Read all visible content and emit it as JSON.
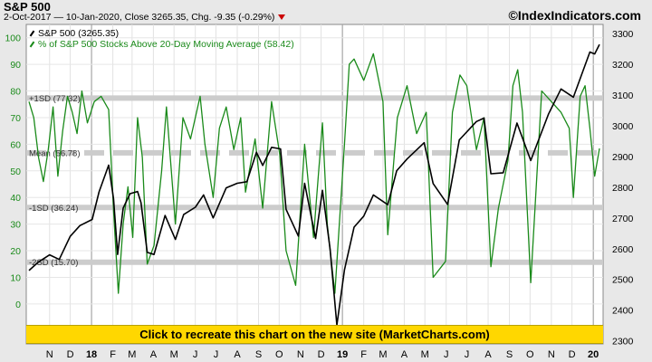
{
  "header": {
    "title": "S&P 500",
    "subtitle": "2-Oct-2017  —  10-Jan-2020, Close 3265.35, Chg. -9.35 (-0.29%)",
    "source": "©IndexIndicators.com",
    "change_color": "#cc0000"
  },
  "legend": {
    "sp500": "S&P 500 (3265.35)",
    "pct_above": "% of S&P 500 Stocks Above 20-Day Moving Average (58.42)"
  },
  "banner": {
    "label": "Click to recreate this chart on the new site (MarketCharts.com)"
  },
  "colors": {
    "sp500": "#000000",
    "pct": "#1a8a1a",
    "band": "#cccccc",
    "banner": "#ffd700"
  },
  "chart_data": {
    "type": "line",
    "x_range": [
      "2017-10-02",
      "2020-01-10"
    ],
    "x_ticks": [
      {
        "date": "2017-11-01",
        "label": "N"
      },
      {
        "date": "2017-12-01",
        "label": "D"
      },
      {
        "date": "2018-01-01",
        "label": "18"
      },
      {
        "date": "2018-02-01",
        "label": "F"
      },
      {
        "date": "2018-03-01",
        "label": "M"
      },
      {
        "date": "2018-04-01",
        "label": "A"
      },
      {
        "date": "2018-05-01",
        "label": "M"
      },
      {
        "date": "2018-06-01",
        "label": "J"
      },
      {
        "date": "2018-07-01",
        "label": "J"
      },
      {
        "date": "2018-08-01",
        "label": "A"
      },
      {
        "date": "2018-09-01",
        "label": "S"
      },
      {
        "date": "2018-10-01",
        "label": "O"
      },
      {
        "date": "2018-11-01",
        "label": "N"
      },
      {
        "date": "2018-12-01",
        "label": "D"
      },
      {
        "date": "2019-01-01",
        "label": "19"
      },
      {
        "date": "2019-02-01",
        "label": "F"
      },
      {
        "date": "2019-03-01",
        "label": "M"
      },
      {
        "date": "2019-04-01",
        "label": "A"
      },
      {
        "date": "2019-05-01",
        "label": "M"
      },
      {
        "date": "2019-06-01",
        "label": "J"
      },
      {
        "date": "2019-07-01",
        "label": "J"
      },
      {
        "date": "2019-08-01",
        "label": "A"
      },
      {
        "date": "2019-09-01",
        "label": "S"
      },
      {
        "date": "2019-10-01",
        "label": "O"
      },
      {
        "date": "2019-11-01",
        "label": "N"
      },
      {
        "date": "2019-12-01",
        "label": "D"
      },
      {
        "date": "2020-01-01",
        "label": "20"
      }
    ],
    "year_marks": [
      "2018-01-01",
      "2019-01-01",
      "2020-01-01"
    ],
    "left_axis": {
      "min": -15,
      "max": 105,
      "ticks": [
        0,
        10,
        20,
        30,
        40,
        50,
        60,
        70,
        80,
        90,
        100
      ]
    },
    "right_axis": {
      "min": 2290,
      "max": 3330,
      "ticks": [
        2300,
        2400,
        2500,
        2600,
        2700,
        2800,
        2900,
        3000,
        3100,
        3200,
        3300
      ]
    },
    "bands": [
      {
        "label": "+1SD (77.32)",
        "value": 77.32
      },
      {
        "label": "Mean (56.78)",
        "value": 56.78,
        "dashed": true
      },
      {
        "label": "-1SD (36.24)",
        "value": 36.24
      },
      {
        "label": "-2SD (15.70)",
        "value": 15.7
      }
    ],
    "series": [
      {
        "name": "S&P 500 (3265.35)",
        "axis": "right",
        "points": [
          [
            "2017-10-02",
            2529
          ],
          [
            "2017-10-16",
            2557
          ],
          [
            "2017-11-01",
            2580
          ],
          [
            "2017-11-15",
            2565
          ],
          [
            "2017-12-01",
            2640
          ],
          [
            "2017-12-15",
            2675
          ],
          [
            "2018-01-02",
            2695
          ],
          [
            "2018-01-12",
            2785
          ],
          [
            "2018-01-26",
            2872
          ],
          [
            "2018-02-02",
            2762
          ],
          [
            "2018-02-08",
            2581
          ],
          [
            "2018-02-16",
            2732
          ],
          [
            "2018-02-26",
            2779
          ],
          [
            "2018-03-09",
            2786
          ],
          [
            "2018-03-14",
            2750
          ],
          [
            "2018-03-23",
            2588
          ],
          [
            "2018-04-02",
            2581
          ],
          [
            "2018-04-18",
            2708
          ],
          [
            "2018-05-03",
            2630
          ],
          [
            "2018-05-15",
            2711
          ],
          [
            "2018-06-01",
            2735
          ],
          [
            "2018-06-13",
            2775
          ],
          [
            "2018-06-27",
            2700
          ],
          [
            "2018-07-16",
            2798
          ],
          [
            "2018-08-01",
            2813
          ],
          [
            "2018-08-15",
            2818
          ],
          [
            "2018-08-29",
            2914
          ],
          [
            "2018-09-07",
            2871
          ],
          [
            "2018-09-20",
            2930
          ],
          [
            "2018-10-03",
            2925
          ],
          [
            "2018-10-11",
            2728
          ],
          [
            "2018-10-29",
            2641
          ],
          [
            "2018-11-07",
            2813
          ],
          [
            "2018-11-23",
            2633
          ],
          [
            "2018-12-03",
            2790
          ],
          [
            "2018-12-14",
            2599
          ],
          [
            "2018-12-24",
            2351
          ],
          [
            "2019-01-04",
            2531
          ],
          [
            "2019-01-18",
            2670
          ],
          [
            "2019-02-01",
            2706
          ],
          [
            "2019-02-15",
            2775
          ],
          [
            "2019-03-08",
            2743
          ],
          [
            "2019-03-21",
            2854
          ],
          [
            "2019-04-05",
            2892
          ],
          [
            "2019-04-30",
            2945
          ],
          [
            "2019-05-13",
            2812
          ],
          [
            "2019-06-03",
            2744
          ],
          [
            "2019-06-20",
            2954
          ],
          [
            "2019-07-15",
            3014
          ],
          [
            "2019-07-26",
            3025
          ],
          [
            "2019-08-05",
            2844
          ],
          [
            "2019-08-23",
            2847
          ],
          [
            "2019-09-12",
            3009
          ],
          [
            "2019-10-02",
            2887
          ],
          [
            "2019-10-28",
            3039
          ],
          [
            "2019-11-15",
            3120
          ],
          [
            "2019-12-03",
            3093
          ],
          [
            "2019-12-27",
            3240
          ],
          [
            "2020-01-03",
            3234
          ],
          [
            "2020-01-10",
            3265
          ]
        ]
      },
      {
        "name": "% of S&P 500 Stocks Above 20-Day Moving Average (58.42)",
        "axis": "left",
        "points": [
          [
            "2017-10-02",
            76
          ],
          [
            "2017-10-09",
            70
          ],
          [
            "2017-10-16",
            55
          ],
          [
            "2017-10-23",
            46
          ],
          [
            "2017-10-30",
            58
          ],
          [
            "2017-11-06",
            74
          ],
          [
            "2017-11-13",
            48
          ],
          [
            "2017-11-20",
            65
          ],
          [
            "2017-11-27",
            78
          ],
          [
            "2017-12-04",
            72
          ],
          [
            "2017-12-11",
            64
          ],
          [
            "2017-12-18",
            80
          ],
          [
            "2017-12-26",
            68
          ],
          [
            "2018-01-05",
            76
          ],
          [
            "2018-01-15",
            78
          ],
          [
            "2018-01-26",
            73
          ],
          [
            "2018-02-02",
            35
          ],
          [
            "2018-02-09",
            4
          ],
          [
            "2018-02-16",
            30
          ],
          [
            "2018-02-23",
            44
          ],
          [
            "2018-03-02",
            25
          ],
          [
            "2018-03-09",
            70
          ],
          [
            "2018-03-16",
            55
          ],
          [
            "2018-03-23",
            15
          ],
          [
            "2018-04-02",
            22
          ],
          [
            "2018-04-13",
            50
          ],
          [
            "2018-04-20",
            74
          ],
          [
            "2018-05-03",
            30
          ],
          [
            "2018-05-14",
            70
          ],
          [
            "2018-05-25",
            62
          ],
          [
            "2018-06-08",
            78
          ],
          [
            "2018-06-15",
            60
          ],
          [
            "2018-06-27",
            40
          ],
          [
            "2018-07-06",
            66
          ],
          [
            "2018-07-16",
            74
          ],
          [
            "2018-07-27",
            58
          ],
          [
            "2018-08-06",
            70
          ],
          [
            "2018-08-13",
            42
          ],
          [
            "2018-08-27",
            62
          ],
          [
            "2018-09-07",
            36
          ],
          [
            "2018-09-20",
            76
          ],
          [
            "2018-10-02",
            56
          ],
          [
            "2018-10-11",
            20
          ],
          [
            "2018-10-25",
            7
          ],
          [
            "2018-11-07",
            60
          ],
          [
            "2018-11-20",
            25
          ],
          [
            "2018-12-03",
            68
          ],
          [
            "2018-12-10",
            30
          ],
          [
            "2018-12-21",
            4
          ],
          [
            "2019-01-04",
            60
          ],
          [
            "2019-01-11",
            90
          ],
          [
            "2019-01-18",
            92
          ],
          [
            "2019-02-01",
            84
          ],
          [
            "2019-02-15",
            94
          ],
          [
            "2019-03-01",
            76
          ],
          [
            "2019-03-08",
            26
          ],
          [
            "2019-03-22",
            70
          ],
          [
            "2019-04-05",
            82
          ],
          [
            "2019-04-19",
            64
          ],
          [
            "2019-05-03",
            72
          ],
          [
            "2019-05-13",
            10
          ],
          [
            "2019-05-31",
            16
          ],
          [
            "2019-06-10",
            72
          ],
          [
            "2019-06-21",
            86
          ],
          [
            "2019-07-01",
            82
          ],
          [
            "2019-07-15",
            58
          ],
          [
            "2019-07-26",
            70
          ],
          [
            "2019-08-05",
            14
          ],
          [
            "2019-08-16",
            36
          ],
          [
            "2019-08-30",
            54
          ],
          [
            "2019-09-06",
            82
          ],
          [
            "2019-09-13",
            88
          ],
          [
            "2019-09-20",
            72
          ],
          [
            "2019-10-02",
            8
          ],
          [
            "2019-10-18",
            80
          ],
          [
            "2019-11-01",
            76
          ],
          [
            "2019-11-15",
            72
          ],
          [
            "2019-11-27",
            66
          ],
          [
            "2019-12-03",
            40
          ],
          [
            "2019-12-13",
            78
          ],
          [
            "2019-12-20",
            82
          ],
          [
            "2019-12-27",
            66
          ],
          [
            "2020-01-03",
            48
          ],
          [
            "2020-01-10",
            58.42
          ]
        ]
      }
    ]
  }
}
